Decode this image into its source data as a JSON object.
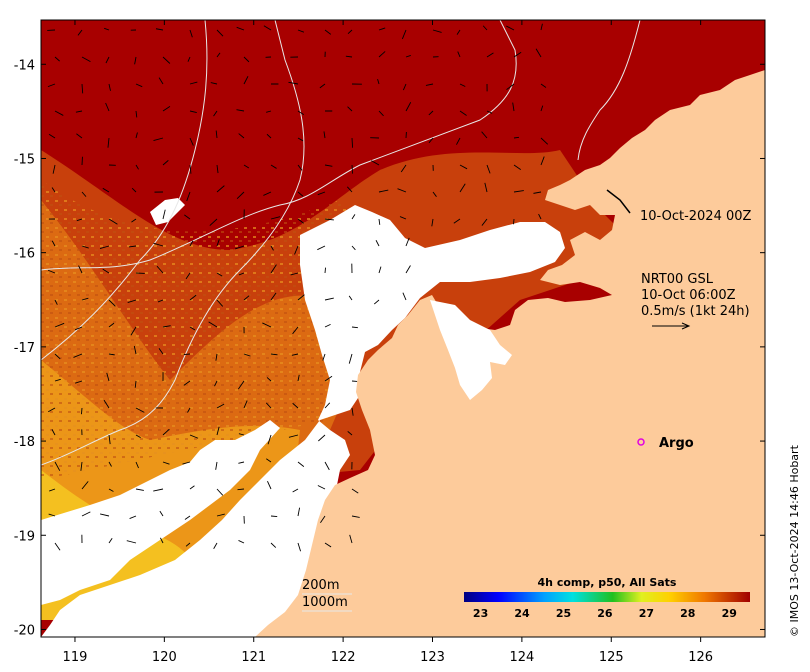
{
  "map": {
    "lon_ticks": [
      "119",
      "120",
      "121",
      "122",
      "123",
      "124",
      "125",
      "126"
    ],
    "lat_ticks": [
      "-14",
      "-15",
      "-16",
      "-17",
      "-18",
      "-19",
      "-20"
    ],
    "lon_range": [
      118.62,
      126.72
    ],
    "lat_range": [
      -20.08,
      -13.53
    ],
    "colors": {
      "sst_hot": "#a80000",
      "sst_warm": "#c8380a",
      "sst_mid": "#e07a10",
      "sst_cool": "#f0a818",
      "sst_yellow": "#f6d020",
      "land": "#fdcb9b",
      "cloud": "#ffffff",
      "argo": "#e000e0"
    }
  },
  "annotations": {
    "track_label": "10-Oct-2024 00Z",
    "current_title": "NRT00 GSL",
    "current_time": "10-Oct 06:00Z",
    "current_scale": "0.5m/s (1kt 24h)",
    "argo_label": "Argo",
    "contour_200": "200m",
    "contour_1000": "1000m"
  },
  "colorbar": {
    "title": "4h comp, p50, All Sats",
    "ticks": [
      "23",
      "24",
      "25",
      "26",
      "27",
      "28",
      "29"
    ],
    "range": [
      22.6,
      29.5
    ]
  },
  "credit": "© IMOS 13-Oct-2024 14:46 Hobart"
}
